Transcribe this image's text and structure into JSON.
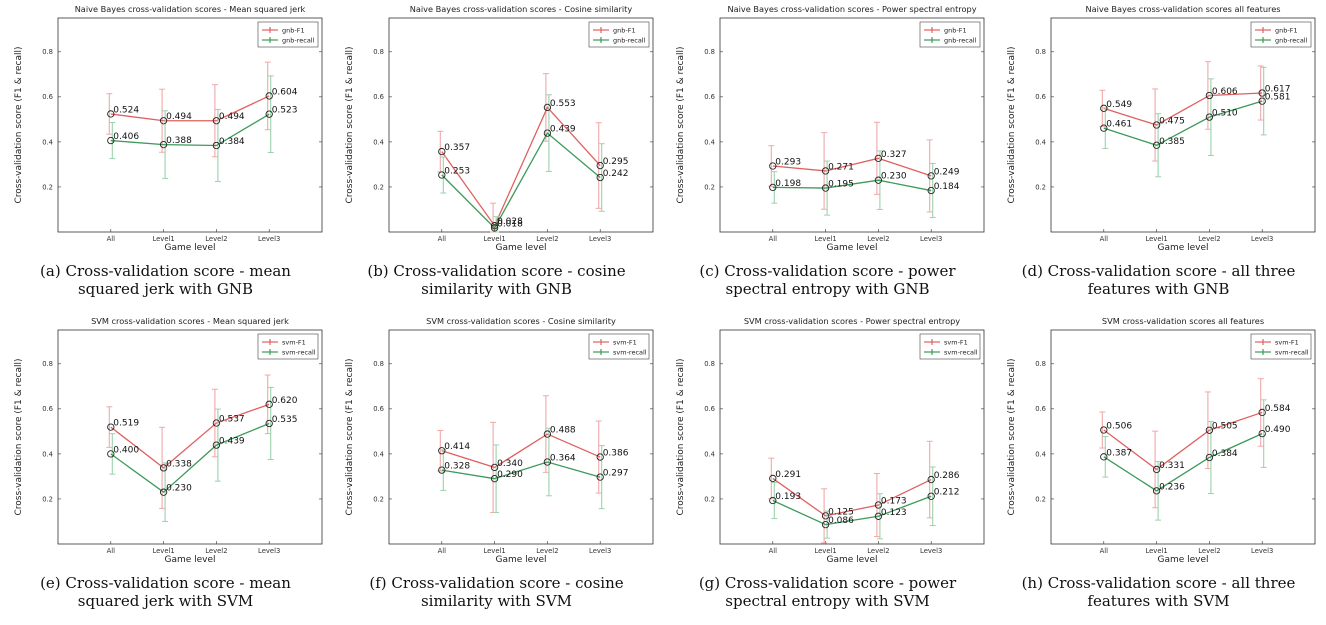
{
  "colors": {
    "f1": "#e06060",
    "recall": "#3c9a5a",
    "errF1": "#f0a8a8",
    "errRecall": "#9cd2ac",
    "marker": "#222222"
  },
  "captions": [
    [
      "(a) Cross-validation score - mean",
      "squared jerk with GNB"
    ],
    [
      "(b) Cross-validation score - cosine",
      "similarity with GNB"
    ],
    [
      "(c) Cross-validation score - power",
      "spectral entropy with GNB"
    ],
    [
      "(d) Cross-validation score - all three",
      "features with GNB"
    ],
    [
      "(e) Cross-validation score - mean",
      "squared jerk with SVM"
    ],
    [
      "(f) Cross-validation score - cosine",
      "similarity with SVM"
    ],
    [
      "(g) Cross-validation score - power",
      "spectral entropy with SVM"
    ],
    [
      "(h) Cross-validation score - all three",
      "features with SVM"
    ]
  ],
  "chart_data": [
    {
      "type": "line",
      "title": "Naive Bayes cross-validation scores - Mean squared jerk",
      "xlabel": "Game level",
      "ylabel": "Cross-validation score (F1 & recall)",
      "categories": [
        "All",
        "Level1",
        "Level2",
        "Level3"
      ],
      "ylim": [
        0,
        0.95
      ],
      "yticks": [
        "0.2",
        "0.4",
        "0.6",
        "0.8"
      ],
      "legend_position": "top-right",
      "series": [
        {
          "name": "gnb-F1",
          "values": [
            0.524,
            0.494,
            0.494,
            0.604
          ],
          "labels": [
            "0.524",
            "0.494",
            "0.494",
            "0.604"
          ],
          "error": [
            0.09,
            0.14,
            0.16,
            0.15
          ]
        },
        {
          "name": "gnb-recall",
          "values": [
            0.406,
            0.388,
            0.384,
            0.523
          ],
          "labels": [
            "0.406",
            "0.388",
            "0.384",
            "0.523"
          ],
          "error": [
            0.08,
            0.15,
            0.16,
            0.17
          ]
        }
      ]
    },
    {
      "type": "line",
      "title": "Naive Bayes cross-validation scores - Cosine similarity",
      "xlabel": "Game level",
      "ylabel": "Cross-validation score (F1 & recall)",
      "categories": [
        "All",
        "Level1",
        "Level2",
        "Level3"
      ],
      "ylim": [
        0,
        0.95
      ],
      "yticks": [
        "0.2",
        "0.4",
        "0.6",
        "0.8"
      ],
      "legend_position": "top-right",
      "series": [
        {
          "name": "gnb-F1",
          "values": [
            0.357,
            0.028,
            0.553,
            0.295
          ],
          "labels": [
            "0.357",
            "0.028",
            "0.553",
            "0.295"
          ],
          "error": [
            0.09,
            0.1,
            0.15,
            0.19
          ]
        },
        {
          "name": "gnb-recall",
          "values": [
            0.253,
            0.018,
            0.439,
            0.242
          ],
          "labels": [
            "0.253",
            "0.018",
            "0.439",
            "0.242"
          ],
          "error": [
            0.08,
            0.05,
            0.17,
            0.15
          ]
        }
      ]
    },
    {
      "type": "line",
      "title": "Naive Bayes cross-validation scores - Power spectral entropy",
      "xlabel": "Game level",
      "ylabel": "Cross-validation score (F1 & recall)",
      "categories": [
        "All",
        "Level1",
        "Level2",
        "Level3"
      ],
      "ylim": [
        0,
        0.95
      ],
      "yticks": [
        "0.2",
        "0.4",
        "0.6",
        "0.8"
      ],
      "legend_position": "top-right",
      "series": [
        {
          "name": "gnb-F1",
          "values": [
            0.293,
            0.271,
            0.327,
            0.249
          ],
          "labels": [
            "0.293",
            "0.271",
            "0.327",
            "0.249"
          ],
          "error": [
            0.09,
            0.17,
            0.16,
            0.16
          ]
        },
        {
          "name": "gnb-recall",
          "values": [
            0.198,
            0.195,
            0.23,
            0.184
          ],
          "labels": [
            "0.198",
            "0.195",
            "0.230",
            "0.184"
          ],
          "error": [
            0.07,
            0.12,
            0.13,
            0.12
          ]
        }
      ]
    },
    {
      "type": "line",
      "title": "Naive Bayes cross-validation scores all features",
      "xlabel": "Game level",
      "ylabel": "Cross-validation score (F1 & recall)",
      "categories": [
        "All",
        "Level1",
        "Level2",
        "Level3"
      ],
      "ylim": [
        0,
        0.95
      ],
      "yticks": [
        "0.2",
        "0.4",
        "0.6",
        "0.8"
      ],
      "legend_position": "top-right",
      "series": [
        {
          "name": "gnb-F1",
          "values": [
            0.549,
            0.475,
            0.606,
            0.617
          ],
          "labels": [
            "0.549",
            "0.475",
            "0.606",
            "0.617"
          ],
          "error": [
            0.08,
            0.16,
            0.15,
            0.12
          ]
        },
        {
          "name": "gnb-recall",
          "values": [
            0.461,
            0.385,
            0.51,
            0.581
          ],
          "labels": [
            "0.461",
            "0.385",
            "0.510",
            "0.581"
          ],
          "error": [
            0.09,
            0.14,
            0.17,
            0.15
          ]
        }
      ]
    },
    {
      "type": "line",
      "title": "SVM cross-validation scores - Mean squared jerk",
      "xlabel": "Game level",
      "ylabel": "Cross-validation score (F1 & recall)",
      "categories": [
        "All",
        "Level1",
        "Level2",
        "Level3"
      ],
      "ylim": [
        0,
        0.95
      ],
      "yticks": [
        "0.2",
        "0.4",
        "0.6",
        "0.8"
      ],
      "legend_position": "top-right",
      "series": [
        {
          "name": "svm-F1",
          "values": [
            0.519,
            0.338,
            0.537,
            0.62
          ],
          "labels": [
            "0.519",
            "0.338",
            "0.537",
            "0.620"
          ],
          "error": [
            0.09,
            0.18,
            0.15,
            0.13
          ]
        },
        {
          "name": "svm-recall",
          "values": [
            0.4,
            0.23,
            0.439,
            0.535
          ],
          "labels": [
            "0.400",
            "0.230",
            "0.439",
            "0.535"
          ],
          "error": [
            0.09,
            0.13,
            0.16,
            0.16
          ]
        }
      ]
    },
    {
      "type": "line",
      "title": "SVM cross-validation scores - Cosine similarity",
      "xlabel": "Game level",
      "ylabel": "Cross-validation score (F1 & recall)",
      "categories": [
        "All",
        "Level1",
        "Level2",
        "Level3"
      ],
      "ylim": [
        0,
        0.95
      ],
      "yticks": [
        "0.2",
        "0.4",
        "0.6",
        "0.8"
      ],
      "legend_position": "top-right",
      "series": [
        {
          "name": "svm-F1",
          "values": [
            0.414,
            0.34,
            0.488,
            0.386
          ],
          "labels": [
            "0.414",
            "0.340",
            "0.488",
            "0.386"
          ],
          "error": [
            0.09,
            0.2,
            0.17,
            0.16
          ]
        },
        {
          "name": "svm-recall",
          "values": [
            0.328,
            0.29,
            0.364,
            0.297
          ],
          "labels": [
            "0.328",
            "0.290",
            "0.364",
            "0.297"
          ],
          "error": [
            0.09,
            0.15,
            0.15,
            0.14
          ]
        }
      ]
    },
    {
      "type": "line",
      "title": "SVM cross-validation scores - Power spectral entropy",
      "xlabel": "Game level",
      "ylabel": "Cross-validation score (F1 & recall)",
      "categories": [
        "All",
        "Level1",
        "Level2",
        "Level3"
      ],
      "ylim": [
        0,
        0.95
      ],
      "yticks": [
        "0.2",
        "0.4",
        "0.6",
        "0.8"
      ],
      "legend_position": "top-right",
      "series": [
        {
          "name": "svm-F1",
          "values": [
            0.291,
            0.125,
            0.173,
            0.286
          ],
          "labels": [
            "0.291",
            "0.125",
            "0.173",
            "0.286"
          ],
          "error": [
            0.09,
            0.12,
            0.14,
            0.17
          ]
        },
        {
          "name": "svm-recall",
          "values": [
            0.193,
            0.086,
            0.123,
            0.212
          ],
          "labels": [
            "0.193",
            "0.086",
            "0.123",
            "0.212"
          ],
          "error": [
            0.08,
            0.06,
            0.1,
            0.13
          ]
        }
      ]
    },
    {
      "type": "line",
      "title": "SVM cross-validation scores all features",
      "xlabel": "Game level",
      "ylabel": "Cross-validation score (F1 & recall)",
      "categories": [
        "All",
        "Level1",
        "Level2",
        "Level3"
      ],
      "ylim": [
        0,
        0.95
      ],
      "yticks": [
        "0.2",
        "0.4",
        "0.6",
        "0.8"
      ],
      "legend_position": "top-right",
      "series": [
        {
          "name": "svm-F1",
          "values": [
            0.506,
            0.331,
            0.505,
            0.584
          ],
          "labels": [
            "0.506",
            "0.331",
            "0.505",
            "0.584"
          ],
          "error": [
            0.08,
            0.17,
            0.17,
            0.15
          ]
        },
        {
          "name": "svm-recall",
          "values": [
            0.387,
            0.236,
            0.384,
            0.49
          ],
          "labels": [
            "0.387",
            "0.236",
            "0.384",
            "0.490"
          ],
          "error": [
            0.09,
            0.13,
            0.16,
            0.15
          ]
        }
      ]
    }
  ]
}
